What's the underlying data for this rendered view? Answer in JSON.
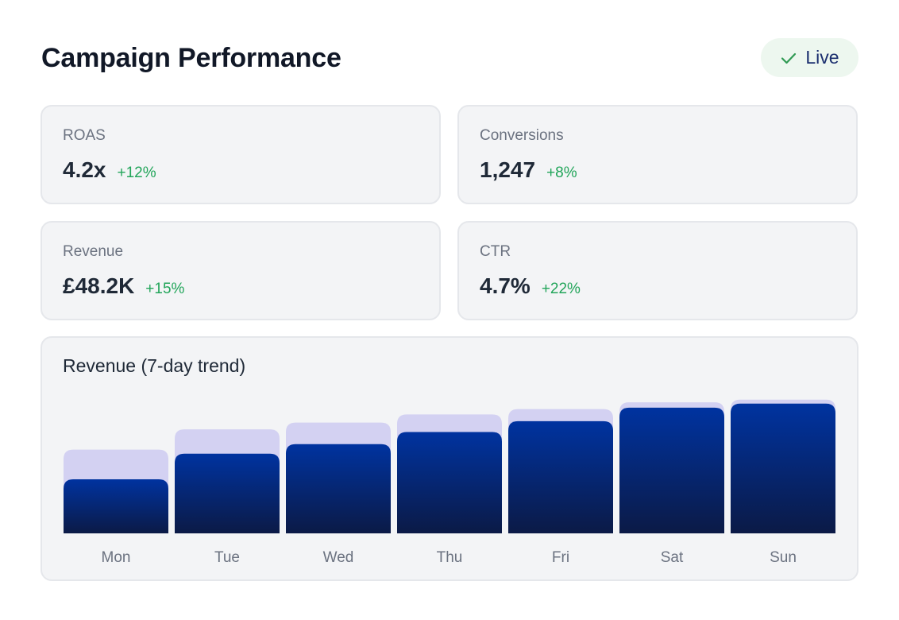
{
  "header": {
    "title": "Campaign Performance",
    "status_label": "Live",
    "status_icon": "check-icon"
  },
  "colors": {
    "delta_positive": "#22a55a",
    "bar_primary_top": "#0033a0",
    "bar_primary_bottom": "#0b1a46",
    "bar_background": "#d3d1f2",
    "badge_bg": "#edf7ef"
  },
  "kpis": [
    {
      "label": "ROAS",
      "value": "4.2x",
      "delta": "+12%"
    },
    {
      "label": "Conversions",
      "value": "1,247",
      "delta": "+8%"
    },
    {
      "label": "Revenue",
      "value": "£48.2K",
      "delta": "+15%"
    },
    {
      "label": "CTR",
      "value": "4.7%",
      "delta": "+22%"
    }
  ],
  "chart": {
    "title": "Revenue (7-day trend)"
  },
  "chart_data": {
    "type": "bar",
    "title": "Revenue (7-day trend)",
    "categories": [
      "Mon",
      "Tue",
      "Wed",
      "Thu",
      "Fri",
      "Sat",
      "Sun"
    ],
    "series": [
      {
        "values": [
          62,
          77,
          82,
          88,
          92,
          97,
          99
        ]
      },
      {
        "values": [
          40,
          59,
          66,
          75,
          83,
          93,
          96
        ]
      }
    ],
    "ylim": [
      0,
      100
    ],
    "grid": false
  }
}
